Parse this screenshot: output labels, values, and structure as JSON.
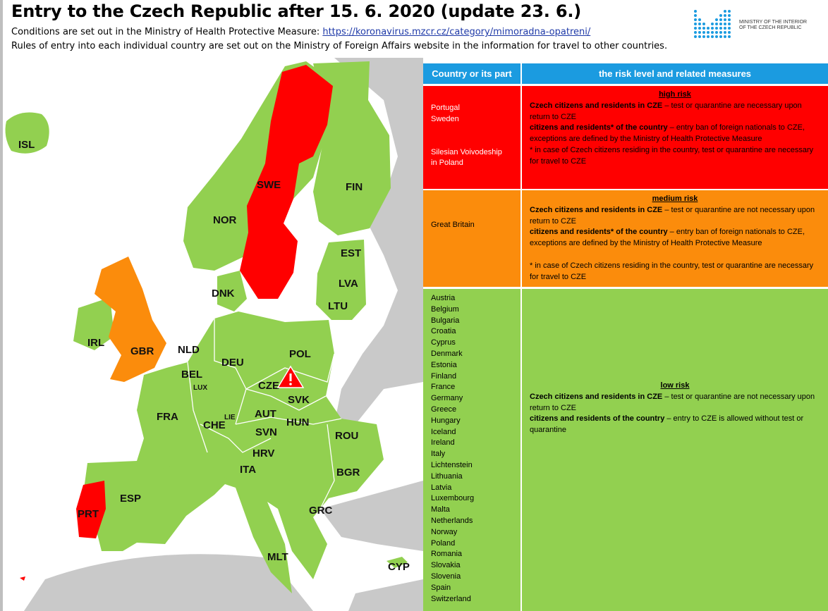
{
  "header": {
    "title": "Entry to the Czech Republic after 15. 6. 2020 (update 23. 6.)",
    "line1_prefix": "Conditions are set out in the Ministry of Health Protective Measure: ",
    "line1_link": "https://koronavirus.mzcr.cz/category/mimoradna-opatreni/",
    "line2": "Rules of entry into each individual country are set out on the Ministry of Foreign Affairs website in the information for travel to other countries."
  },
  "logo": {
    "line1": "MINISTRY OF THE INTERIOR",
    "line2": "OF THE CZECH REPUBLIC"
  },
  "colors": {
    "high": "#ff0000",
    "medium": "#fb8c0c",
    "low": "#92d050",
    "header_blue": "#1b9be0",
    "non_eu_gray": "#c9c9c9",
    "sea": "#ffffff"
  },
  "map": {
    "labels": {
      "isl": "ISL",
      "nor": "NOR",
      "swe": "SWE",
      "fin": "FIN",
      "est": "EST",
      "lva": "LVA",
      "ltu": "LTU",
      "dnk": "DNK",
      "irl": "IRL",
      "gbr": "GBR",
      "nld": "NLD",
      "bel": "BEL",
      "lux": "LUX",
      "deu": "DEU",
      "pol": "POL",
      "cze": "CZE",
      "svk": "SVK",
      "fra": "FRA",
      "che": "CHE",
      "lie": "LIE",
      "aut": "AUT",
      "hun": "HUN",
      "svn": "SVN",
      "rou": "ROU",
      "hrv": "HRV",
      "ita": "ITA",
      "bgr": "BGR",
      "esp": "ESP",
      "prt": "PRT",
      "grc": "GRC",
      "mlt": "MLT",
      "cyp": "CYP"
    },
    "warning_icon": "warning-icon"
  },
  "table": {
    "header_col1": "Country or its part",
    "header_col2": "the risk level and related measures",
    "high": {
      "countries_a": [
        "Portugal",
        "Sweden"
      ],
      "countries_b": [
        "Silesian Voivodeship",
        "in Poland"
      ],
      "title": "high risk",
      "line1_bold": "Czech citizens and residents in CZE",
      "line1_rest": " – test or quarantine are necessary upon return to CZE",
      "line2_bold": "citizens and residents* of the country",
      "line2_rest": " – entry ban of foreign nationals to CZE, exceptions are defined by the Ministry of Health Protective Measure",
      "note": "* in case of Czech citizens residing in the country, test or quarantine are necessary for travel to CZE"
    },
    "medium": {
      "country": "Great Britain",
      "title": "medium risk",
      "line1_bold": "Czech citizens and residents in CZE",
      "line1_rest": " – test or quarantine are not necessary upon return to CZE",
      "line2_bold": "citizens and residents* of the country",
      "line2_rest": " – entry ban of foreign nationals to CZE, exceptions are defined by the Ministry of Health Protective Measure",
      "note": "* in case of Czech citizens residing in the country, test or quarantine are necessary for travel to CZE"
    },
    "low": {
      "countries": [
        "Austria",
        "Belgium",
        "Bulgaria",
        "Croatia",
        "Cyprus",
        "Denmark",
        "Estonia",
        "Finland",
        "France",
        "Germany",
        "Greece",
        "Hungary",
        "Iceland",
        "Ireland",
        "Italy",
        "Lichtenstein",
        "Lithuania",
        "Latvia",
        "Luxembourg",
        "Malta",
        "Netherlands",
        "Norway",
        "Poland",
        "Romania",
        "Slovakia",
        "Slovenia",
        "Spain",
        "Switzerland"
      ],
      "title": "low risk",
      "line1_bold": "Czech citizens and residents in CZE",
      "line1_rest": " – test or quarantine are not necessary upon return to CZE",
      "line2_bold": "citizens and residents of the country",
      "line2_rest": " – entry to CZE is allowed without test or quarantine"
    }
  }
}
